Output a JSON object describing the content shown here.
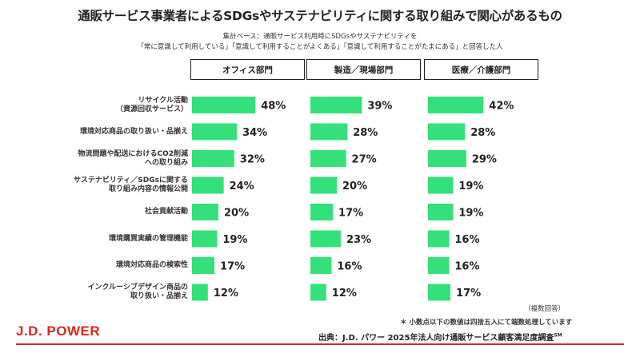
{
  "title": "通販サービス事業者によるSDGsやサステナビリティに関する取り組みで関心があるもの",
  "note_line1": "集計ベース：通販サービス利用時にSDGsやサステナビリティを",
  "note_line2": "「常に意識して利用している」「意識して利用することがよくある」「意識して利用することがたまにある」と回答した人",
  "multiple_answers_note": "（複数回答）",
  "rounding_note": "＊ 小数点以下の数値は四捨五入にて端数処理しています",
  "source_text": "出典：J.D. パワー 2025年法人向け通販サービス顧客満足度調査",
  "source_superscript": "SM",
  "brand": "J.D. POWER",
  "colors": {
    "bar": "#33e07a",
    "accent": "#e0261b",
    "text": "#222222"
  },
  "chart_data": {
    "type": "bar",
    "orientation": "horizontal",
    "title": "通販サービス事業者によるSDGsやサステナビリティに関する取り組みで関心があるもの",
    "categories": [
      [
        "リサイクル活動",
        "（資源回収サービス）"
      ],
      [
        "環境対応商品の取り扱い・品揃え"
      ],
      [
        "物流問題や配送におけるCO2削減",
        "への取り組み"
      ],
      [
        "サステナビリティ／SDGsに関する",
        "取り組み内容の情報公開"
      ],
      [
        "社会貢献活動"
      ],
      [
        "環境購買実績の管理機能"
      ],
      [
        "環境対応商品の検索性"
      ],
      [
        "インクルーシブデザイン商品の",
        "取り扱い・品揃え"
      ]
    ],
    "unit": "%",
    "series": [
      {
        "name": "オフィス部門",
        "values": [
          48,
          34,
          32,
          24,
          20,
          19,
          17,
          12
        ]
      },
      {
        "name": "製造／現場部門",
        "values": [
          39,
          28,
          27,
          20,
          17,
          23,
          16,
          12
        ]
      },
      {
        "name": "医療／介護部門",
        "values": [
          42,
          28,
          29,
          19,
          19,
          16,
          16,
          17
        ]
      }
    ],
    "grid": false,
    "legend": "none"
  }
}
